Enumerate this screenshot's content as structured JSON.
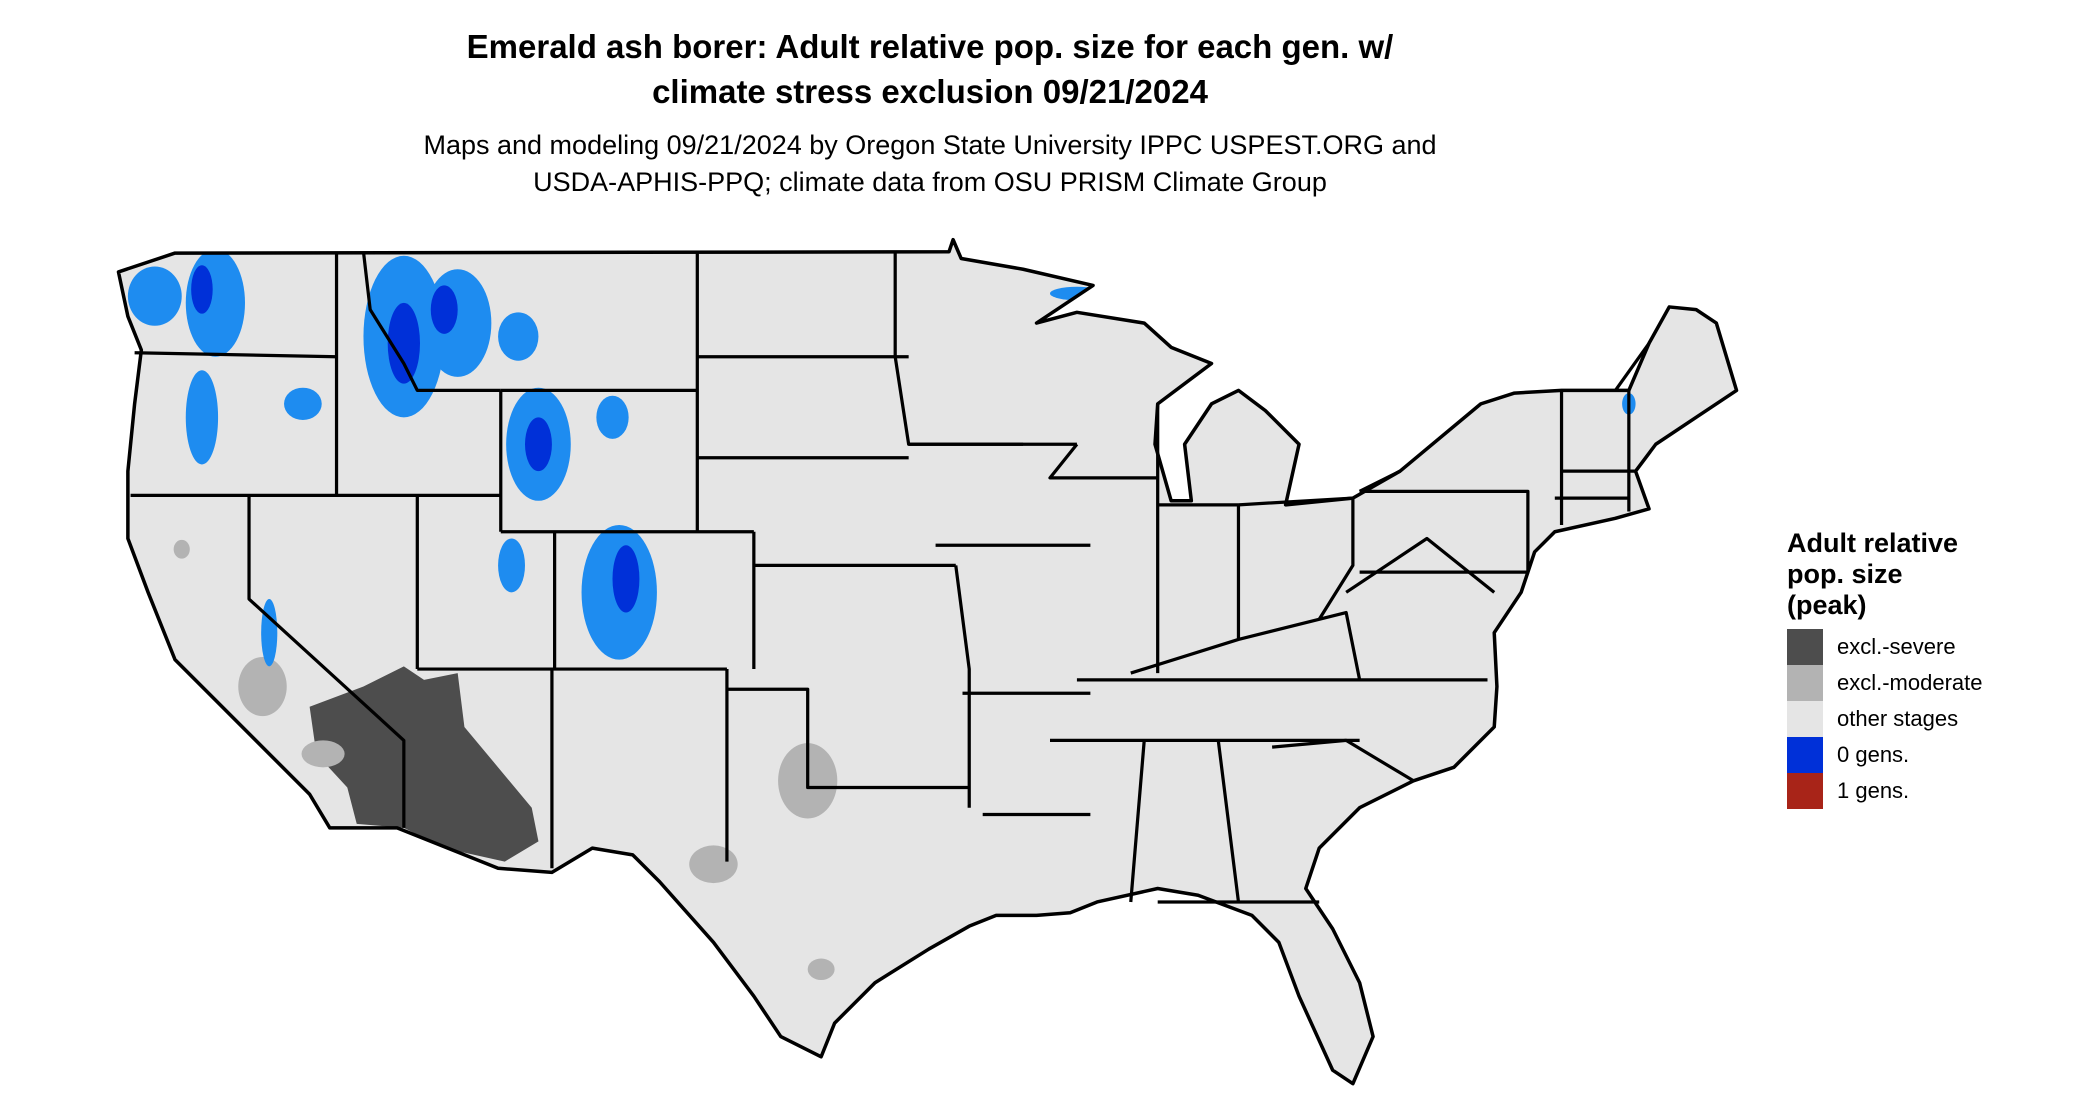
{
  "title": {
    "line1": "Emerald ash borer: Adult relative pop. size for each gen. w/",
    "line2": "climate stress exclusion 09/21/2024"
  },
  "subtitle": {
    "line1": "Maps and modeling 09/21/2024 by Oregon State University IPPC USPEST.ORG and",
    "line2": "USDA-APHIS-PPQ; climate data from OSU PRISM Climate Group"
  },
  "legend": {
    "title_lines": [
      "Adult relative",
      "pop. size",
      "(peak)"
    ],
    "items": [
      {
        "label": "excl.-severe",
        "color": "#4d4d4d"
      },
      {
        "label": "excl.-moderate",
        "color": "#b3b3b3"
      },
      {
        "label": "other stages",
        "color": "#e5e5e5"
      },
      {
        "label": "0 gens.",
        "color": "#0030d8"
      },
      {
        "label": "1 gens.",
        "color": "#a82418"
      }
    ]
  },
  "map": {
    "region": "conterminous United States with state boundaries",
    "base_color": "#e5e5e5",
    "zero_gen_highlight_color": "#1e8cf0",
    "border_color": "#000000"
  }
}
